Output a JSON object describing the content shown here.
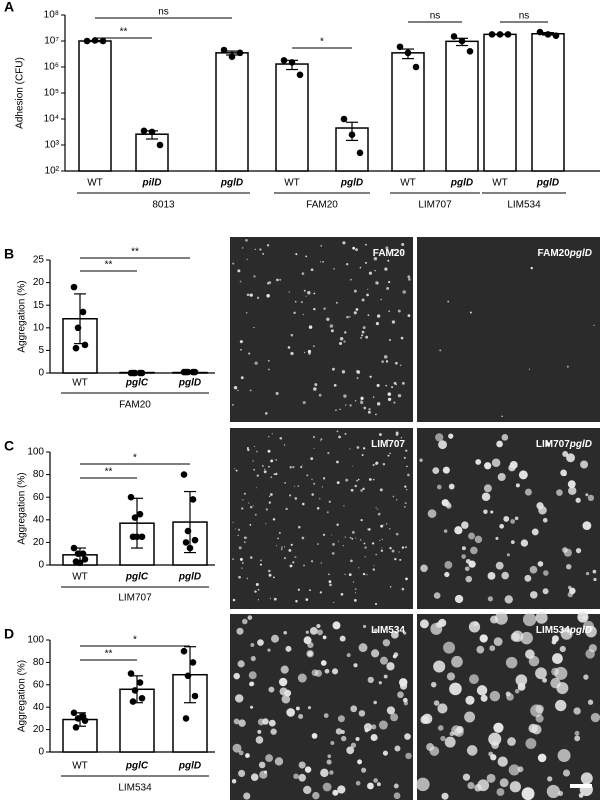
{
  "chart_data": [
    {
      "type": "bar",
      "panel": "A",
      "y_label": "Adhesion (CFU)",
      "log_scale": true,
      "categories": [
        "WT",
        "pilD",
        "pglD",
        "WT",
        "pglD",
        "WT",
        "pglD",
        "WT",
        "pglD"
      ],
      "italic": [
        false,
        true,
        true,
        false,
        true,
        false,
        true,
        false,
        true
      ],
      "groups": [
        "8013",
        "FAM20",
        "LIM707",
        "LIM534"
      ],
      "values": [
        10000000,
        2600,
        3500000,
        1300000,
        4500,
        3500000,
        9700000,
        18000000,
        19000000
      ],
      "errors": [
        500000,
        900,
        600000,
        500000,
        3000,
        1400000,
        3000000,
        500000,
        2000000
      ],
      "points": [
        [
          10000000,
          10500000,
          10000000
        ],
        [
          3500,
          3200,
          1000
        ],
        [
          4500000,
          2500000,
          3500000
        ],
        [
          1800000,
          1500000,
          500000
        ],
        [
          10000,
          2500,
          500
        ],
        [
          6000000,
          3500000,
          1000000
        ],
        [
          15000000,
          10000000,
          4000000
        ],
        [
          18000000,
          18000000,
          18000000
        ],
        [
          22000000,
          18000000,
          16000000
        ]
      ],
      "comparisons": [
        "**",
        "ns",
        "*",
        "ns",
        "ns"
      ],
      "ylim": [
        100,
        100000000
      ],
      "yticks": [
        {
          "value": 100,
          "label": "10²"
        },
        {
          "value": 1000,
          "label": "10³"
        },
        {
          "value": 10000,
          "label": "10⁴"
        },
        {
          "value": 100000,
          "label": "10⁵"
        },
        {
          "value": 1000000,
          "label": "10⁶"
        },
        {
          "value": 10000000,
          "label": "10⁷"
        },
        {
          "value": 100000000,
          "label": "10⁸"
        }
      ]
    },
    {
      "type": "bar",
      "panel": "B",
      "y_label": "Aggregation (%)",
      "log_scale": false,
      "categories": [
        "WT",
        "pglC",
        "pglD"
      ],
      "italic": [
        false,
        true,
        true
      ],
      "groups": [
        "FAM20"
      ],
      "values": [
        12,
        0.1,
        0.1
      ],
      "errors": [
        5.5,
        0.1,
        0.1
      ],
      "points": [
        [
          19,
          13.5,
          10,
          6.2,
          5.5
        ],
        [
          0,
          0,
          0,
          0,
          0
        ],
        [
          0.2,
          0.2,
          0.2,
          0.2,
          0.2
        ]
      ],
      "comparisons": [
        "**",
        "**"
      ],
      "ylim": [
        0,
        25
      ],
      "yticks": [
        0,
        5,
        10,
        15,
        20,
        25
      ]
    },
    {
      "type": "bar",
      "panel": "C",
      "y_label": "Aggregation (%)",
      "log_scale": false,
      "categories": [
        "WT",
        "pglC",
        "pglD"
      ],
      "italic": [
        false,
        true,
        true
      ],
      "groups": [
        "LIM707"
      ],
      "values": [
        9,
        37,
        38
      ],
      "errors": [
        6,
        22,
        27
      ],
      "points": [
        [
          15,
          10,
          10,
          5,
          3,
          2
        ],
        [
          60,
          45,
          42,
          25,
          25,
          25
        ],
        [
          80,
          58,
          30,
          22,
          20,
          15
        ]
      ],
      "comparisons": [
        "**",
        "*"
      ],
      "ylim": [
        0,
        100
      ],
      "yticks": [
        0,
        20,
        40,
        60,
        80,
        100
      ]
    },
    {
      "type": "bar",
      "panel": "D",
      "y_label": "Aggregation (%)",
      "log_scale": false,
      "categories": [
        "WT",
        "pglC",
        "pglD"
      ],
      "italic": [
        false,
        true,
        true
      ],
      "groups": [
        "LIM534"
      ],
      "values": [
        29,
        56,
        69
      ],
      "errors": [
        6,
        12,
        25
      ],
      "points": [
        [
          35,
          32,
          30,
          28,
          22
        ],
        [
          70,
          62,
          55,
          48,
          45
        ],
        [
          90,
          80,
          68,
          50,
          30
        ]
      ],
      "comparisons": [
        "**",
        "*"
      ],
      "ylim": [
        0,
        100
      ],
      "yticks": [
        0,
        20,
        40,
        60,
        80,
        100
      ]
    }
  ],
  "images": [
    {
      "label": "FAM20"
    },
    {
      "label": "FAM20",
      "suffix": "pglD"
    },
    {
      "label": "LIM707"
    },
    {
      "label": "LIM707",
      "suffix": "pglD"
    },
    {
      "label": "LIM534"
    },
    {
      "label": "LIM534",
      "suffix": "pglD"
    }
  ]
}
